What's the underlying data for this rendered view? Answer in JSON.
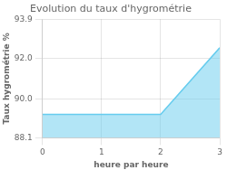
{
  "chart_data": {
    "type": "area",
    "title": "Evolution du taux d'hygrométrie",
    "xlabel": "heure par heure",
    "ylabel": "Taux hygrométrie %",
    "x": [
      0,
      2,
      3
    ],
    "values": [
      89.25,
      89.25,
      92.5
    ],
    "color": "#66ccee",
    "xlim": [
      0,
      3
    ],
    "ylim": [
      88.1,
      93.9
    ],
    "xticks": [
      0,
      1,
      2,
      3
    ],
    "yticks": [
      88.1,
      {
        "value": 90.0,
        "label": "90.0"
      },
      {
        "value": 92.0,
        "label": "92.0"
      },
      93.9
    ],
    "grid": true
  }
}
